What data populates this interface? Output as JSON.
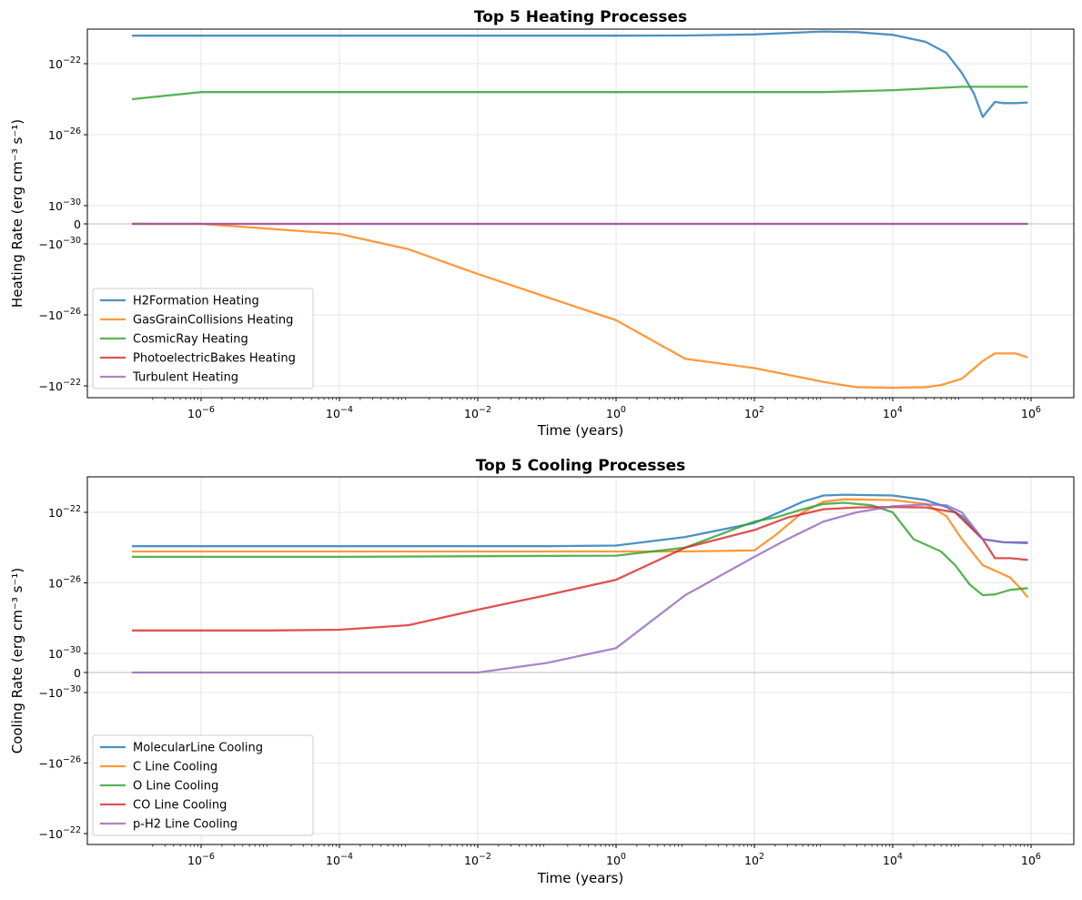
{
  "chart_data": [
    {
      "type": "line",
      "title": "Top 5 Heating Processes",
      "xlabel": "Time (years)",
      "ylabel": "Heating Rate (erg cm⁻³ s⁻¹)",
      "xscale": "log",
      "yscale": "symlog",
      "xlim": [
        1e-07,
        1000000.0
      ],
      "grid": true,
      "legend_position": "lower-left",
      "x_ticks": [
        {
          "exp": -6,
          "label_base": "10",
          "label_exp": "−6"
        },
        {
          "exp": -4,
          "label_base": "10",
          "label_exp": "−4"
        },
        {
          "exp": -2,
          "label_base": "10",
          "label_exp": "−2"
        },
        {
          "exp": 0,
          "label_base": "10",
          "label_exp": "0"
        },
        {
          "exp": 2,
          "label_base": "10",
          "label_exp": "2"
        },
        {
          "exp": 4,
          "label_base": "10",
          "label_exp": "4"
        },
        {
          "exp": 6,
          "label_base": "10",
          "label_exp": "6"
        }
      ],
      "y_ticks": [
        {
          "value": "1e-22",
          "label_base": "10",
          "label_exp": "−22"
        },
        {
          "value": "1e-26",
          "label_base": "10",
          "label_exp": "−26"
        },
        {
          "value": "1e-30",
          "label_base": "10",
          "label_exp": "−30"
        },
        {
          "value": "0",
          "label_base": "0",
          "label_exp": ""
        },
        {
          "value": "-1e-30",
          "label_base": "−10",
          "label_exp": "−30"
        },
        {
          "value": "-1e-26",
          "label_base": "−10",
          "label_exp": "−26"
        },
        {
          "value": "-1e-22",
          "label_base": "−10",
          "label_exp": "−22"
        }
      ],
      "series": [
        {
          "name": "H2Formation Heating",
          "color": "#1f77b4",
          "x": [
            1e-07,
            1e-06,
            0.0001,
            0.01,
            1,
            10,
            100,
            1000,
            3000,
            10000,
            30000,
            60000,
            100000,
            150000,
            200000,
            300000,
            400000,
            600000,
            900000
          ],
          "y": [
            3.8e-21,
            3.8e-21,
            3.8e-21,
            3.8e-21,
            3.8e-21,
            3.9e-21,
            4.5e-21,
            6.5e-21,
            6e-21,
            4.2e-21,
            1.7e-21,
            4e-22,
            3e-23,
            2e-24,
            1e-25,
            7e-25,
            6e-25,
            6e-25,
            6.5e-25
          ]
        },
        {
          "name": "GasGrainCollisions Heating",
          "color": "#ff7f0e",
          "x": [
            1e-07,
            1e-06,
            0.0001,
            0.001,
            0.01,
            0.1,
            1,
            10,
            100,
            1000,
            3000,
            10000,
            30000,
            50000,
            100000,
            200000,
            300000,
            600000,
            900000
          ],
          "y": [
            0,
            0,
            -1e-31,
            -2e-30,
            -5e-29,
            -1e-27,
            -2e-26,
            -3e-24,
            -1e-23,
            -6e-23,
            -1.2e-22,
            -1.3e-22,
            -1.2e-22,
            -9e-23,
            -4e-23,
            -4e-24,
            -1.5e-24,
            -1.5e-24,
            -2.5e-24
          ]
        },
        {
          "name": "CosmicRay Heating",
          "color": "#2ca02c",
          "x": [
            1e-07,
            1e-06,
            0.0001,
            0.01,
            1,
            100,
            1000,
            10000,
            100000,
            300000,
            900000
          ],
          "y": [
            1e-24,
            2.5e-24,
            2.5e-24,
            2.5e-24,
            2.5e-24,
            2.5e-24,
            2.5e-24,
            3.2e-24,
            5e-24,
            5e-24,
            5e-24
          ]
        },
        {
          "name": "PhotoelectricBakes Heating",
          "color": "#d62728",
          "x": [
            1e-07,
            0.0001,
            1,
            10000.0,
            900000.0
          ],
          "y": [
            0,
            0,
            0,
            0,
            0
          ]
        },
        {
          "name": "Turbulent Heating",
          "color": "#9467bd",
          "x": [
            1e-07,
            0.0001,
            1,
            10000.0,
            900000.0
          ],
          "y": [
            0,
            0,
            0,
            0,
            0
          ]
        }
      ]
    },
    {
      "type": "line",
      "title": "Top 5 Cooling Processes",
      "xlabel": "Time (years)",
      "ylabel": "Cooling Rate (erg cm⁻³ s⁻¹)",
      "xscale": "log",
      "yscale": "symlog",
      "xlim": [
        1e-07,
        1000000.0
      ],
      "grid": true,
      "legend_position": "lower-left",
      "x_ticks": [
        {
          "exp": -6,
          "label_base": "10",
          "label_exp": "−6"
        },
        {
          "exp": -4,
          "label_base": "10",
          "label_exp": "−4"
        },
        {
          "exp": -2,
          "label_base": "10",
          "label_exp": "−2"
        },
        {
          "exp": 0,
          "label_base": "10",
          "label_exp": "0"
        },
        {
          "exp": 2,
          "label_base": "10",
          "label_exp": "2"
        },
        {
          "exp": 4,
          "label_base": "10",
          "label_exp": "4"
        },
        {
          "exp": 6,
          "label_base": "10",
          "label_exp": "6"
        }
      ],
      "y_ticks": [
        {
          "value": "1e-22",
          "label_base": "10",
          "label_exp": "−22"
        },
        {
          "value": "1e-26",
          "label_base": "10",
          "label_exp": "−26"
        },
        {
          "value": "1e-30",
          "label_base": "10",
          "label_exp": "−30"
        },
        {
          "value": "0",
          "label_base": "0",
          "label_exp": ""
        },
        {
          "value": "-1e-30",
          "label_base": "−10",
          "label_exp": "−30"
        },
        {
          "value": "-1e-26",
          "label_base": "−10",
          "label_exp": "−26"
        },
        {
          "value": "-1e-22",
          "label_base": "−10",
          "label_exp": "−22"
        }
      ],
      "series": [
        {
          "name": "MolecularLine Cooling",
          "color": "#1f77b4",
          "x": [
            1e-07,
            0.0001,
            0.1,
            1,
            10,
            100,
            200,
            500,
            1000,
            2000,
            10000,
            30000,
            60000,
            100000,
            200000,
            400000,
            900000
          ],
          "y": [
            1.2e-24,
            1.2e-24,
            1.2e-24,
            1.3e-24,
            4e-24,
            2.5e-23,
            8e-23,
            4e-22,
            9e-22,
            1e-21,
            9e-22,
            5e-22,
            2e-22,
            6e-23,
            3e-24,
            2e-24,
            1.8e-24
          ]
        },
        {
          "name": "C Line Cooling",
          "color": "#ff7f0e",
          "x": [
            1e-07,
            0.0001,
            1,
            10,
            100,
            200,
            500,
            1000,
            2000,
            10000,
            30000,
            60000,
            100000,
            200000,
            400000,
            500000,
            700000,
            900000
          ],
          "y": [
            6e-25,
            6e-25,
            6e-25,
            6e-25,
            7e-25,
            5e-24,
            1e-22,
            4e-22,
            5.5e-22,
            5e-22,
            3e-22,
            6e-23,
            3e-24,
            1e-25,
            3e-26,
            2e-26,
            5e-27,
            1.5e-27
          ]
        },
        {
          "name": "O Line Cooling",
          "color": "#2ca02c",
          "x": [
            1e-07,
            0.0001,
            1,
            10,
            100,
            200,
            500,
            1000,
            2000,
            5000,
            10000,
            20000,
            50000,
            80000,
            130000,
            200000,
            300000,
            500000,
            900000
          ],
          "y": [
            3e-25,
            3e-25,
            3.5e-25,
            1e-24,
            3e-23,
            5e-23,
            1.5e-22,
            3e-22,
            3.5e-22,
            2.5e-22,
            1e-22,
            3e-24,
            6e-25,
            1e-25,
            8e-27,
            2e-27,
            2.2e-27,
            4e-27,
            5e-27
          ]
        },
        {
          "name": "CO Line Cooling",
          "color": "#d62728",
          "x": [
            1e-07,
            1e-05,
            0.0001,
            0.001,
            0.01,
            0.1,
            1,
            10,
            100,
            300,
            1000,
            3000,
            10000,
            30000,
            80000,
            200000,
            300000,
            500000,
            900000
          ],
          "y": [
            2e-29,
            2e-29,
            2.2e-29,
            4e-29,
            3e-28,
            2e-27,
            1.5e-26,
            1e-24,
            1e-23,
            5e-23,
            1.5e-22,
            1.9e-22,
            2e-22,
            1.9e-22,
            1e-22,
            3e-24,
            2.5e-25,
            2.5e-25,
            2e-25
          ]
        },
        {
          "name": "p-H2 Line Cooling",
          "color": "#9467bd",
          "x": [
            1e-07,
            0.0001,
            0.01,
            0.1,
            1,
            10,
            100,
            300,
            1000,
            3000,
            10000,
            30000,
            60000,
            100000,
            200000,
            400000,
            900000
          ],
          "y": [
            0,
            0,
            0,
            1e-31,
            2e-30,
            2e-27,
            3e-25,
            3e-24,
            3e-23,
            1e-22,
            2.2e-22,
            2.8e-22,
            2.5e-22,
            1e-22,
            3e-24,
            2e-24,
            2e-24
          ]
        }
      ]
    }
  ]
}
